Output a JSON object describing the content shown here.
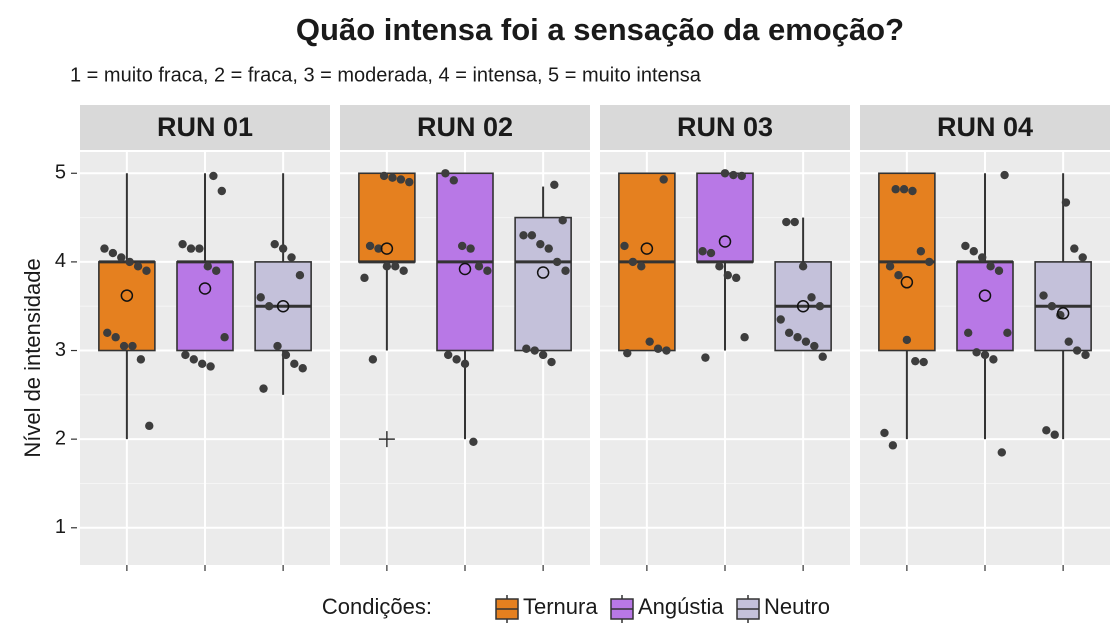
{
  "chart_data": {
    "type": "box",
    "title": "Quão intensa foi a sensação da emoção?",
    "subtitle": "1 = muito fraca, 2 = fraca, 3 = moderada, 4 = intensa, 5 = muito intensa",
    "y_label": "Nível de intensidade",
    "legend_title": "Condições:",
    "series": [
      {
        "name": "Ternura",
        "color": "#e5801f"
      },
      {
        "name": "Angústia",
        "color": "#b878e6"
      },
      {
        "name": "Neutro",
        "color": "#c4c1da"
      }
    ],
    "ylim": [
      0.58,
      5.24
    ],
    "yticks": [
      1,
      2,
      3,
      4,
      5
    ],
    "grid": true,
    "panels": [
      {
        "name": "RUN 01",
        "boxes": [
          {
            "whisker_low": 2,
            "q1": 3,
            "median": 4,
            "q3": 4,
            "whisker_high": 5,
            "mean": 3.62,
            "outliers": [],
            "points": [
              4.15,
              4.1,
              4.05,
              4.0,
              3.95,
              3.9,
              3.2,
              3.15,
              3.05,
              3.05,
              2.9,
              2.15
            ]
          },
          {
            "whisker_low": 3,
            "q1": 3,
            "median": 4,
            "q3": 4,
            "whisker_high": 5,
            "mean": 3.7,
            "outliers": [],
            "points": [
              4.97,
              4.8,
              4.2,
              4.15,
              4.15,
              3.95,
              3.9,
              3.15,
              2.95,
              2.9,
              2.85,
              2.82
            ]
          },
          {
            "whisker_low": 2.5,
            "q1": 3,
            "median": 3.5,
            "q3": 4,
            "whisker_high": 5,
            "mean": 3.5,
            "outliers": [],
            "points": [
              4.2,
              4.15,
              4.05,
              3.85,
              3.6,
              3.5,
              3.05,
              2.95,
              2.85,
              2.8,
              2.57
            ]
          }
        ]
      },
      {
        "name": "RUN 02",
        "boxes": [
          {
            "whisker_low": 3,
            "q1": 4,
            "median": 4,
            "q3": 5,
            "whisker_high": 5,
            "mean": 4.15,
            "outliers": [
              2
            ],
            "points": [
              4.97,
              4.95,
              4.93,
              4.9,
              4.18,
              4.15,
              3.95,
              3.95,
              3.9,
              3.82,
              2.9
            ]
          },
          {
            "whisker_low": 2,
            "q1": 3,
            "median": 4,
            "q3": 5,
            "whisker_high": 5,
            "mean": 3.92,
            "outliers": [],
            "points": [
              5.0,
              4.92,
              4.18,
              4.15,
              3.95,
              3.9,
              2.95,
              2.9,
              2.85,
              1.97
            ]
          },
          {
            "whisker_low": 3,
            "q1": 3,
            "median": 4,
            "q3": 4.5,
            "whisker_high": 4.85,
            "mean": 3.88,
            "outliers": [],
            "points": [
              4.87,
              4.47,
              4.3,
              4.3,
              4.2,
              4.15,
              4.0,
              3.9,
              3.02,
              3.0,
              2.95,
              2.87
            ]
          }
        ]
      },
      {
        "name": "RUN 03",
        "boxes": [
          {
            "whisker_low": 3,
            "q1": 3,
            "median": 4,
            "q3": 5,
            "whisker_high": 5,
            "mean": 4.15,
            "outliers": [],
            "points": [
              4.93,
              4.18,
              4.0,
              3.95,
              3.1,
              3.02,
              3.0,
              2.97
            ]
          },
          {
            "whisker_low": 3,
            "q1": 4,
            "median": 4,
            "q3": 5,
            "whisker_high": 5,
            "mean": 4.23,
            "outliers": [],
            "points": [
              5.0,
              4.98,
              4.97,
              4.12,
              4.1,
              3.95,
              3.85,
              3.82,
              3.15,
              2.92
            ]
          },
          {
            "whisker_low": 3,
            "q1": 3,
            "median": 3.5,
            "q3": 4,
            "whisker_high": 4.5,
            "mean": 3.5,
            "outliers": [],
            "points": [
              4.45,
              4.45,
              3.95,
              3.6,
              3.5,
              3.35,
              3.2,
              3.15,
              3.1,
              3.05,
              2.93
            ]
          }
        ]
      },
      {
        "name": "RUN 04",
        "boxes": [
          {
            "whisker_low": 2,
            "q1": 3,
            "median": 4,
            "q3": 5,
            "whisker_high": 5,
            "mean": 3.77,
            "outliers": [],
            "points": [
              4.82,
              4.82,
              4.8,
              4.12,
              4.0,
              3.95,
              3.85,
              3.12,
              2.88,
              2.87,
              2.07,
              1.93
            ]
          },
          {
            "whisker_low": 2,
            "q1": 3,
            "median": 4,
            "q3": 4,
            "whisker_high": 5,
            "mean": 3.62,
            "outliers": [],
            "points": [
              4.98,
              4.18,
              4.12,
              4.05,
              3.95,
              3.9,
              3.2,
              3.2,
              2.98,
              2.95,
              2.9,
              1.85
            ]
          },
          {
            "whisker_low": 2,
            "q1": 3,
            "median": 3.5,
            "q3": 4,
            "whisker_high": 5,
            "mean": 3.42,
            "outliers": [],
            "points": [
              4.67,
              4.15,
              4.05,
              3.62,
              3.5,
              3.4,
              3.1,
              3.0,
              2.95,
              2.1,
              2.05
            ]
          }
        ]
      }
    ]
  }
}
